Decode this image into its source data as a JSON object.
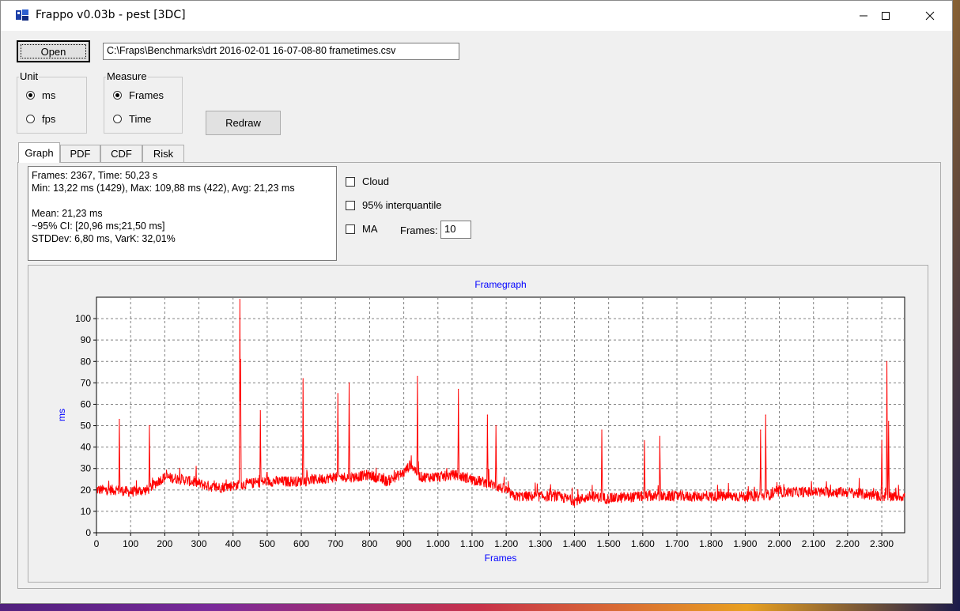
{
  "window": {
    "title": "Frappo v0.03b - pest [3DC]",
    "minimize": "—",
    "maximize": "☐",
    "close": "✕"
  },
  "toolbar": {
    "open_label": "Open",
    "file_path": "C:\\Fraps\\Benchmarks\\drt 2016-02-01 16-07-08-80 frametimes.csv",
    "redraw_label": "Redraw"
  },
  "unit": {
    "label": "Unit",
    "options": [
      "ms",
      "fps"
    ],
    "selected": "ms"
  },
  "measure": {
    "label": "Measure",
    "options": [
      "Frames",
      "Time"
    ],
    "selected": "Frames"
  },
  "tabs": [
    "Graph",
    "PDF",
    "CDF",
    "Risk"
  ],
  "active_tab": "Graph",
  "stats": {
    "line1": "Frames: 2367, Time: 50,23 s",
    "line2": "Min: 13,22 ms (1429), Max: 109,88 ms (422), Avg: 21,23 ms",
    "line3": "Mean: 21,23 ms",
    "line4": "~95% CI: [20,96 ms;21,50 ms]",
    "line5": "STDDev: 6,80 ms, VarK: 32,01%"
  },
  "options": {
    "cloud_label": "Cloud",
    "interquantile_label": "95% interquantile",
    "ma_label": "MA",
    "frames_label": "Frames:",
    "frames_value": "10"
  },
  "chart_data": {
    "type": "line",
    "title": "Framegraph",
    "xlabel": "Frames",
    "ylabel": "ms",
    "xlim": [
      0,
      2367
    ],
    "ylim": [
      0,
      110
    ],
    "x_ticks": [
      0,
      100,
      200,
      300,
      400,
      500,
      600,
      700,
      800,
      900,
      1000,
      1100,
      1200,
      1300,
      1400,
      1500,
      1600,
      1700,
      1800,
      1900,
      2000,
      2100,
      2200,
      2300
    ],
    "x_tick_labels": [
      "0",
      "100",
      "200",
      "300",
      "400",
      "500",
      "600",
      "700",
      "800",
      "900",
      "1.000",
      "1.100",
      "1.200",
      "1.300",
      "1.400",
      "1.500",
      "1.600",
      "1.700",
      "1.800",
      "1.900",
      "2.000",
      "2.100",
      "2.200",
      "2.300"
    ],
    "y_ticks": [
      0,
      10,
      20,
      30,
      40,
      50,
      60,
      70,
      80,
      90,
      100
    ],
    "grid": true,
    "line_color": "#ff0000",
    "title_color": "#0000ff",
    "baseline": [
      [
        0,
        20
      ],
      [
        60,
        20
      ],
      [
        100,
        19
      ],
      [
        150,
        20
      ],
      [
        180,
        24
      ],
      [
        200,
        26
      ],
      [
        250,
        25
      ],
      [
        300,
        23
      ],
      [
        350,
        21
      ],
      [
        400,
        22
      ],
      [
        450,
        23
      ],
      [
        500,
        24
      ],
      [
        550,
        24
      ],
      [
        600,
        24
      ],
      [
        650,
        25
      ],
      [
        700,
        26
      ],
      [
        750,
        26
      ],
      [
        800,
        27
      ],
      [
        850,
        24
      ],
      [
        900,
        28
      ],
      [
        920,
        32
      ],
      [
        950,
        26
      ],
      [
        1000,
        26
      ],
      [
        1050,
        27
      ],
      [
        1100,
        25
      ],
      [
        1150,
        23
      ],
      [
        1200,
        20
      ],
      [
        1220,
        17
      ],
      [
        1300,
        17
      ],
      [
        1350,
        17
      ],
      [
        1400,
        15
      ],
      [
        1450,
        17
      ],
      [
        1500,
        16
      ],
      [
        1600,
        17
      ],
      [
        1700,
        17
      ],
      [
        1800,
        17
      ],
      [
        1900,
        17
      ],
      [
        1950,
        17
      ],
      [
        2000,
        19
      ],
      [
        2100,
        19
      ],
      [
        2200,
        19
      ],
      [
        2300,
        17
      ],
      [
        2367,
        17
      ]
    ],
    "spikes": [
      [
        67,
        53
      ],
      [
        155,
        50
      ],
      [
        420,
        109
      ],
      [
        422,
        81
      ],
      [
        480,
        57
      ],
      [
        605,
        72
      ],
      [
        707,
        65
      ],
      [
        740,
        70
      ],
      [
        940,
        73
      ],
      [
        1060,
        67
      ],
      [
        1145,
        55
      ],
      [
        1170,
        50
      ],
      [
        1480,
        48
      ],
      [
        1605,
        43
      ],
      [
        1650,
        45
      ],
      [
        1945,
        48
      ],
      [
        1960,
        55
      ],
      [
        2300,
        43
      ],
      [
        2315,
        80
      ],
      [
        2320,
        52
      ]
    ]
  }
}
